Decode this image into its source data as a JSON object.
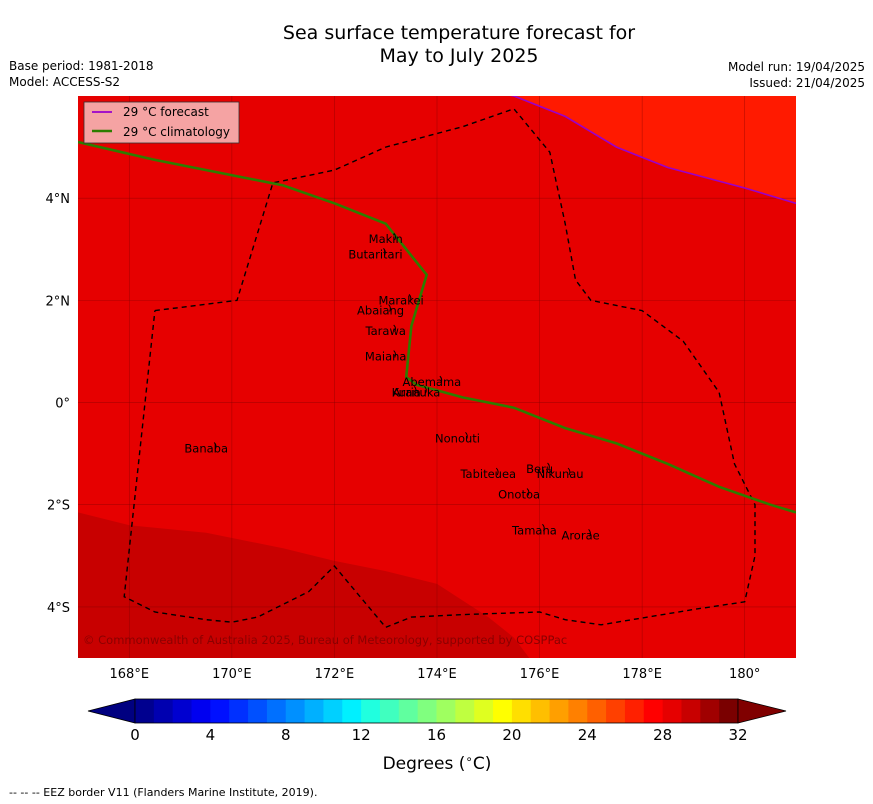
{
  "header": {
    "title_line1": "Sea surface temperature forecast for",
    "title_line2": "May to July 2025",
    "base_period": "Base period: 1981-2018",
    "model": "Model: ACCESS-S2",
    "model_run": "Model run: 19/04/2025",
    "issued": "Issued: 21/04/2025"
  },
  "map": {
    "lon_range": [
      167,
      181
    ],
    "lat_range": [
      -5,
      6
    ],
    "lon_ticks": [
      {
        "value": 168,
        "label": "168°E"
      },
      {
        "value": 170,
        "label": "170°E"
      },
      {
        "value": 172,
        "label": "172°E"
      },
      {
        "value": 174,
        "label": "174°E"
      },
      {
        "value": 176,
        "label": "176°E"
      },
      {
        "value": 178,
        "label": "178°E"
      },
      {
        "value": 180,
        "label": "180°"
      }
    ],
    "lat_ticks": [
      {
        "value": 4,
        "label": "4°N"
      },
      {
        "value": 2,
        "label": "2°N"
      },
      {
        "value": 0,
        "label": "0°"
      },
      {
        "value": -2,
        "label": "2°S"
      },
      {
        "value": -4,
        "label": "4°S"
      }
    ],
    "field_colors": {
      "warm_29_30": "#e60000",
      "hot_30_31": "#ff1a00",
      "cool_28_29": "#c80000"
    },
    "legend": [
      {
        "label": "29 °C  forecast",
        "color": "#9900cc"
      },
      {
        "label": "29 °C  climatology",
        "color": "#2e7d00"
      }
    ],
    "legend_bg": "#f5a3a3",
    "forecast_29_line": [
      [
        175.0,
        6.1
      ],
      [
        175.5,
        6.0
      ],
      [
        176.5,
        5.6
      ],
      [
        177.5,
        5.0
      ],
      [
        178.5,
        4.6
      ],
      [
        180.0,
        4.2
      ],
      [
        181.0,
        3.9
      ]
    ],
    "climatology_29_line": [
      [
        167.0,
        5.1
      ],
      [
        168.5,
        4.75
      ],
      [
        171.0,
        4.25
      ],
      [
        172.0,
        3.9
      ],
      [
        173.0,
        3.5
      ],
      [
        173.8,
        2.5
      ],
      [
        173.5,
        1.5
      ],
      [
        173.4,
        0.5
      ],
      [
        173.6,
        0.35
      ],
      [
        174.5,
        0.1
      ],
      [
        175.5,
        -0.1
      ],
      [
        176.5,
        -0.5
      ],
      [
        177.5,
        -0.8
      ],
      [
        178.5,
        -1.2
      ],
      [
        179.5,
        -1.65
      ],
      [
        180.5,
        -2.0
      ],
      [
        181.0,
        -2.15
      ]
    ],
    "cool_region": [
      [
        167.0,
        -2.15
      ],
      [
        168.0,
        -2.4
      ],
      [
        169.5,
        -2.55
      ],
      [
        171.0,
        -2.85
      ],
      [
        172.0,
        -3.1
      ],
      [
        173.0,
        -3.3
      ],
      [
        174.0,
        -3.55
      ],
      [
        175.0,
        -4.2
      ],
      [
        175.5,
        -4.6
      ],
      [
        175.8,
        -5.0
      ],
      [
        167.0,
        -5.0
      ]
    ],
    "eez_border": [
      [
        168.5,
        1.8
      ],
      [
        170.1,
        2.0
      ],
      [
        170.8,
        4.3
      ],
      [
        172.0,
        4.55
      ],
      [
        173.0,
        5.0
      ],
      [
        174.5,
        5.4
      ],
      [
        175.5,
        5.75
      ],
      [
        176.2,
        4.9
      ],
      [
        176.5,
        3.5
      ],
      [
        176.7,
        2.4
      ],
      [
        177.0,
        2.0
      ],
      [
        178.0,
        1.8
      ],
      [
        178.8,
        1.2
      ],
      [
        179.5,
        0.2
      ],
      [
        179.8,
        -1.2
      ],
      [
        180.2,
        -2.0
      ],
      [
        180.2,
        -3.0
      ],
      [
        180.0,
        -3.9
      ],
      [
        179.0,
        -4.05
      ],
      [
        177.2,
        -4.35
      ],
      [
        176.5,
        -4.25
      ],
      [
        176.0,
        -4.1
      ],
      [
        174.5,
        -4.15
      ],
      [
        173.5,
        -4.2
      ],
      [
        173.0,
        -4.4
      ],
      [
        172.0,
        -3.2
      ],
      [
        171.5,
        -3.7
      ],
      [
        170.5,
        -4.2
      ],
      [
        170.0,
        -4.3
      ],
      [
        169.5,
        -4.25
      ],
      [
        168.5,
        -4.1
      ],
      [
        167.9,
        -3.8
      ],
      [
        168.5,
        1.8
      ]
    ],
    "places": [
      {
        "name": "Makin",
        "lon": 173.0,
        "lat": 3.2
      },
      {
        "name": "Butaritari",
        "lon": 172.8,
        "lat": 2.9
      },
      {
        "name": "Marakei",
        "lon": 173.3,
        "lat": 2.0
      },
      {
        "name": "Abaiang",
        "lon": 172.9,
        "lat": 1.8
      },
      {
        "name": "Tarawa",
        "lon": 173.0,
        "lat": 1.4
      },
      {
        "name": "Maiana",
        "lon": 173.0,
        "lat": 0.9
      },
      {
        "name": "Abemama",
        "lon": 173.9,
        "lat": 0.4
      },
      {
        "name": "Kuria",
        "lon": 173.4,
        "lat": 0.2
      },
      {
        "name": "Aranuka",
        "lon": 173.6,
        "lat": 0.2
      },
      {
        "name": "Nonouti",
        "lon": 174.4,
        "lat": -0.7
      },
      {
        "name": "Banaba",
        "lon": 169.5,
        "lat": -0.9
      },
      {
        "name": "Tabiteuea",
        "lon": 175.0,
        "lat": -1.4
      },
      {
        "name": "Beru",
        "lon": 176.0,
        "lat": -1.3
      },
      {
        "name": "Nikunau",
        "lon": 176.4,
        "lat": -1.4
      },
      {
        "name": "Onotoa",
        "lon": 175.6,
        "lat": -1.8
      },
      {
        "name": "Tamana",
        "lon": 175.9,
        "lat": -2.5
      },
      {
        "name": "Arorae",
        "lon": 176.8,
        "lat": -2.6
      }
    ],
    "copyright": "© Commonwealth of Australia 2025, Bureau of Meteorology, supported by COSPPac"
  },
  "colorbar": {
    "min": 0,
    "max": 32,
    "step": 1,
    "ticks": [
      "0",
      "4",
      "8",
      "12",
      "16",
      "20",
      "24",
      "28",
      "32"
    ],
    "colors": [
      "#00008f",
      "#0000b0",
      "#0000d0",
      "#0000f0",
      "#0010ff",
      "#0030ff",
      "#0050ff",
      "#0070ff",
      "#0090ff",
      "#00b0ff",
      "#00d0ff",
      "#00f0ff",
      "#20ffdf",
      "#40ffbf",
      "#60ff9f",
      "#80ff7f",
      "#9fff60",
      "#bfff40",
      "#dfff20",
      "#ffff00",
      "#ffdf00",
      "#ffbf00",
      "#ff9f00",
      "#ff8000",
      "#ff6000",
      "#ff4000",
      "#ff2000",
      "#ff0000",
      "#e60000",
      "#c80000",
      "#a00000",
      "#7a0000"
    ],
    "under_color": "#000080",
    "over_color": "#800000",
    "title": "Degrees (",
    "title_unit": "°C",
    "title_close": ")"
  },
  "footer": "--  --  -- EEZ border V11 (Flanders Marine Institute, 2019)."
}
